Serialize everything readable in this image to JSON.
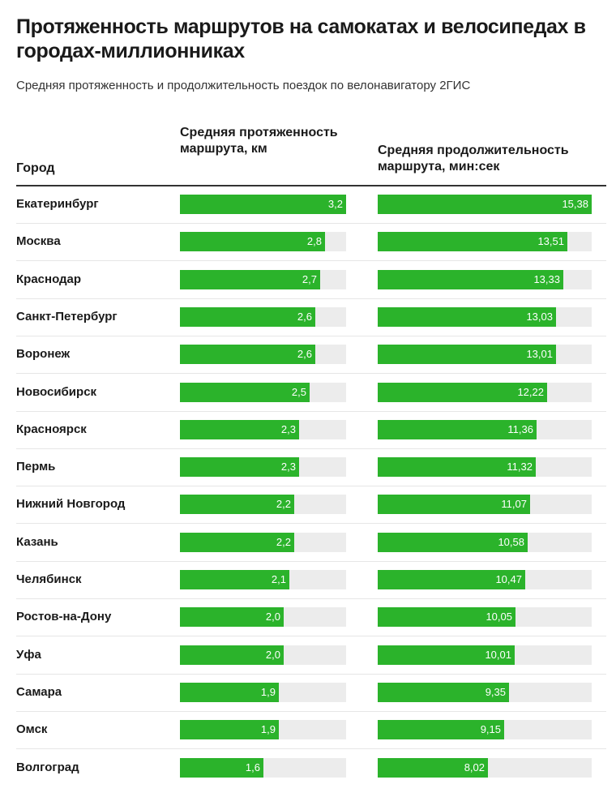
{
  "title": "Протяженность маршрутов на самокатах и велосипедах в городах-миллионниках",
  "subtitle": "Средняя протяженность и продолжительность поездок по велонавигатору 2ГИС",
  "colors": {
    "bar": "#2bb32b",
    "track": "#ececec"
  },
  "chart_data": {
    "type": "table",
    "columns": [
      "Город",
      "Средняя протяженность маршрута, км",
      "Средняя продолжительность маршрута, мин:сек"
    ],
    "rows": [
      {
        "city": "Екатеринбург",
        "length_km": "3,2",
        "duration": "15,38"
      },
      {
        "city": "Москва",
        "length_km": "2,8",
        "duration": "13,51"
      },
      {
        "city": "Краснодар",
        "length_km": "2,7",
        "duration": "13,33"
      },
      {
        "city": "Санкт-Петербург",
        "length_km": "2,6",
        "duration": "13,03"
      },
      {
        "city": "Воронеж",
        "length_km": "2,6",
        "duration": "13,01"
      },
      {
        "city": "Новосибирск",
        "length_km": "2,5",
        "duration": "12,22"
      },
      {
        "city": "Красноярск",
        "length_km": "2,3",
        "duration": "11,36"
      },
      {
        "city": "Пермь",
        "length_km": "2,3",
        "duration": "11,32"
      },
      {
        "city": "Нижний Новгород",
        "length_km": "2,2",
        "duration": "11,07"
      },
      {
        "city": "Казань",
        "length_km": "2,2",
        "duration": "10,58"
      },
      {
        "city": "Челябинск",
        "length_km": "2,1",
        "duration": "10,47"
      },
      {
        "city": "Ростов-на-Дону",
        "length_km": "2,0",
        "duration": "10,05"
      },
      {
        "city": "Уфа",
        "length_km": "2,0",
        "duration": "10,01"
      },
      {
        "city": "Самара",
        "length_km": "1,9",
        "duration": "9,35"
      },
      {
        "city": "Омск",
        "length_km": "1,9",
        "duration": "9,15"
      },
      {
        "city": "Волгоград",
        "length_km": "1,6",
        "duration": "8,02"
      }
    ],
    "length_max": 3.2,
    "duration_max": "15,38"
  }
}
